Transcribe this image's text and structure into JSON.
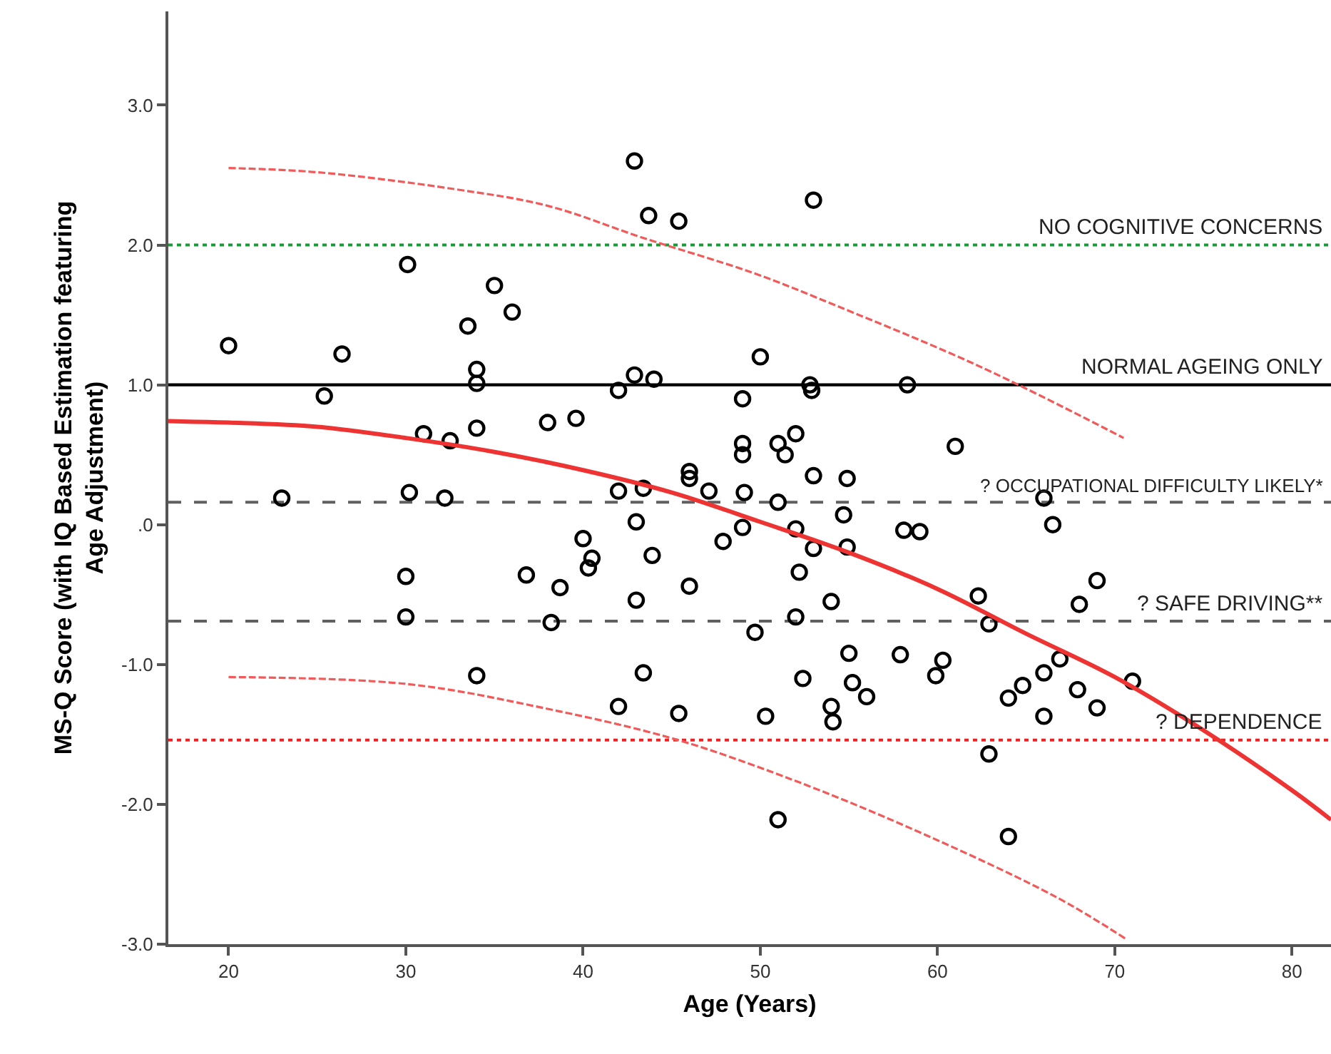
{
  "chart_data": {
    "type": "scatter",
    "xlabel": "Age (Years)",
    "ylabel": "MS-Q Score (with IQ Based Estimation featuring Age Adjustment)",
    "xlim": [
      16.6,
      82.2
    ],
    "ylim": [
      -3.0,
      3.67
    ],
    "xticks": [
      20,
      30,
      40,
      50,
      60,
      70,
      80
    ],
    "yticks": [
      {
        "value": 3,
        "label": "3.0"
      },
      {
        "value": 2,
        "label": "2.0"
      },
      {
        "value": 1,
        "label": "1.0"
      },
      {
        "value": 0,
        "label": ".0"
      },
      {
        "value": -1,
        "label": "-1.0"
      },
      {
        "value": -2,
        "label": "-2.0"
      },
      {
        "value": -3,
        "label": "-3.0"
      }
    ],
    "grid": false,
    "series": [
      {
        "marker": "circle",
        "color": "#000000",
        "x": [
          20.0,
          23.0,
          25.4,
          26.4,
          30.1,
          30.2,
          30.0,
          30.0,
          31.0,
          32.5,
          32.2,
          33.5,
          34.0,
          34.0,
          34.0,
          34.0,
          35.0,
          36.0,
          36.8,
          38.0,
          38.2,
          38.7,
          39.6,
          40.0,
          40.3,
          40.5,
          42.0,
          42.0,
          42.0,
          42.9,
          42.9,
          43.0,
          43.0,
          43.4,
          43.4,
          43.7,
          44.0,
          43.9,
          45.4,
          45.4,
          46.0,
          46.0,
          46.0,
          47.1,
          47.9,
          49.0,
          49.0,
          49.0,
          49.1,
          49.0,
          49.7,
          50.0,
          50.3,
          51.0,
          51.0,
          51.4,
          52.0,
          52.0,
          52.0,
          52.2,
          51.0,
          52.4,
          52.8,
          52.9,
          53.0,
          53.0,
          53.0,
          54.0,
          54.0,
          54.1,
          54.7,
          54.9,
          54.9,
          55.0,
          55.2,
          56.0,
          57.9,
          58.1,
          59.0,
          58.3,
          59.9,
          60.3,
          61.0,
          62.3,
          62.9,
          62.9,
          64.0,
          64.0,
          64.8,
          66.0,
          66.5,
          66.0,
          66.0,
          66.9,
          67.9,
          68.0,
          69.0,
          69.0,
          71.0
        ],
        "values": [
          1.28,
          0.19,
          0.92,
          1.22,
          1.86,
          0.23,
          -0.37,
          -0.66,
          0.65,
          0.6,
          0.19,
          1.42,
          1.11,
          1.01,
          0.69,
          -1.08,
          1.71,
          1.52,
          -0.36,
          0.73,
          -0.7,
          -0.45,
          0.76,
          -0.1,
          -0.31,
          -0.24,
          0.96,
          0.24,
          -1.3,
          2.6,
          1.07,
          0.02,
          -0.54,
          0.26,
          -1.06,
          2.21,
          1.04,
          -0.22,
          2.17,
          -1.35,
          0.38,
          0.33,
          -0.44,
          0.24,
          -0.12,
          0.9,
          0.58,
          0.5,
          0.23,
          -0.02,
          -0.77,
          1.2,
          -1.37,
          0.58,
          0.16,
          0.5,
          0.65,
          -0.03,
          -0.66,
          -0.34,
          -2.11,
          -1.1,
          1.0,
          0.96,
          2.32,
          0.35,
          -0.17,
          -0.55,
          -1.3,
          -1.41,
          0.07,
          0.33,
          -0.16,
          -0.92,
          -1.13,
          -1.23,
          -0.93,
          -0.04,
          -0.05,
          1.0,
          -1.08,
          -0.97,
          0.56,
          -0.51,
          -0.71,
          -1.64,
          -1.24,
          -2.23,
          -1.15,
          0.19,
          0.0,
          -1.06,
          -1.37,
          -0.96,
          -1.18,
          -0.57,
          -0.4,
          -1.31,
          -1.12
        ]
      },
      {
        "type": "line",
        "line_style": "solid",
        "marker": "none",
        "color": "#ee3333",
        "x": [
          16.6,
          20,
          25,
          30,
          35,
          40,
          45,
          50,
          55,
          60,
          65,
          70,
          75,
          80,
          82.2
        ],
        "values": [
          0.74,
          0.73,
          0.7,
          0.62,
          0.52,
          0.39,
          0.23,
          0.02,
          -0.2,
          -0.46,
          -0.78,
          -1.09,
          -1.47,
          -1.9,
          -2.11
        ]
      },
      {
        "type": "line",
        "line_style": "dashed",
        "marker": "none",
        "color": "#f25a5a",
        "x": [
          20,
          25,
          32.7,
          38,
          43.4,
          49.6,
          54.4,
          62.4,
          70.5
        ],
        "values": [
          2.55,
          2.52,
          2.4,
          2.28,
          2.05,
          1.8,
          1.56,
          1.13,
          0.62
        ]
      },
      {
        "type": "line",
        "line_style": "dashed",
        "marker": "none",
        "color": "#f25a5a",
        "x": [
          20,
          30.1,
          38.1,
          44.8,
          49.6,
          57.0,
          66.5,
          70.6
        ],
        "values": [
          -1.09,
          -1.14,
          -1.32,
          -1.52,
          -1.72,
          -2.09,
          -2.65,
          -2.96
        ]
      }
    ],
    "ref_lines": [
      {
        "axis": "y",
        "value": 2.0,
        "label": "NO COGNITIVE CONCERNS",
        "color": "#1a9a3a",
        "line_style": "dotted"
      },
      {
        "axis": "y",
        "value": 1.0,
        "label": "NORMAL AGEING ONLY",
        "color": "#000000",
        "line_style": "solid"
      },
      {
        "axis": "y",
        "value": 0.16,
        "label": "? OCCUPATIONAL DIFFICULTY LIKELY*",
        "color": "#606060",
        "line_style": "dashed"
      },
      {
        "axis": "y",
        "value": -0.69,
        "label": "? SAFE DRIVING**",
        "color": "#606060",
        "line_style": "dashed"
      },
      {
        "axis": "y",
        "value": -1.54,
        "label": "? DEPENDENCE",
        "color": "#ee2222",
        "line_style": "dotted"
      }
    ]
  }
}
